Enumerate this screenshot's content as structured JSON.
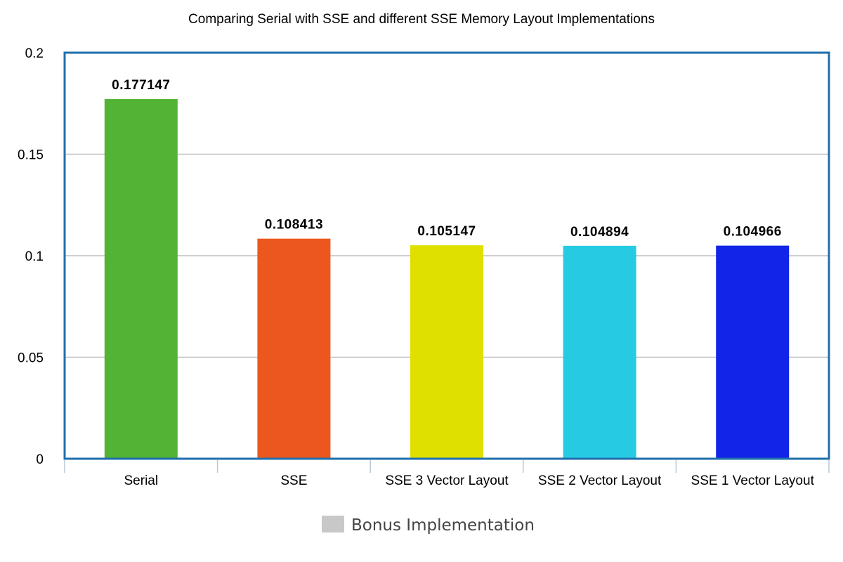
{
  "chart_data": {
    "type": "bar",
    "title": "Comparing Serial with SSE and different SSE Memory Layout Implementations",
    "xlabel": "",
    "ylabel": "",
    "categories": [
      "Serial",
      "SSE",
      "SSE 3 Vector Layout",
      "SSE 2 Vector Layout",
      "SSE 1 Vector Layout"
    ],
    "values": [
      0.177147,
      0.108413,
      0.105147,
      0.104894,
      0.104966
    ],
    "data_labels": [
      "0.177147",
      "0.108413",
      "0.105147",
      "0.104894",
      "0.104966"
    ],
    "bar_colors": [
      "#52b334",
      "#ec571f",
      "#dfe000",
      "#26cbe3",
      "#1124e8"
    ],
    "ylim": [
      0,
      0.2
    ],
    "yticks": [
      0,
      0.05,
      0.1,
      0.15,
      0.2
    ],
    "ytick_labels": [
      "0",
      "0.05",
      "0.1",
      "0.15",
      "0.2"
    ],
    "grid": true,
    "legend": {
      "placement": "bottom-center",
      "entries": [
        {
          "label": "Bonus Implementation",
          "color": "#c8c8c8"
        }
      ]
    },
    "frame_color": "#1f6fad",
    "grid_color": "#bfbfbf"
  }
}
